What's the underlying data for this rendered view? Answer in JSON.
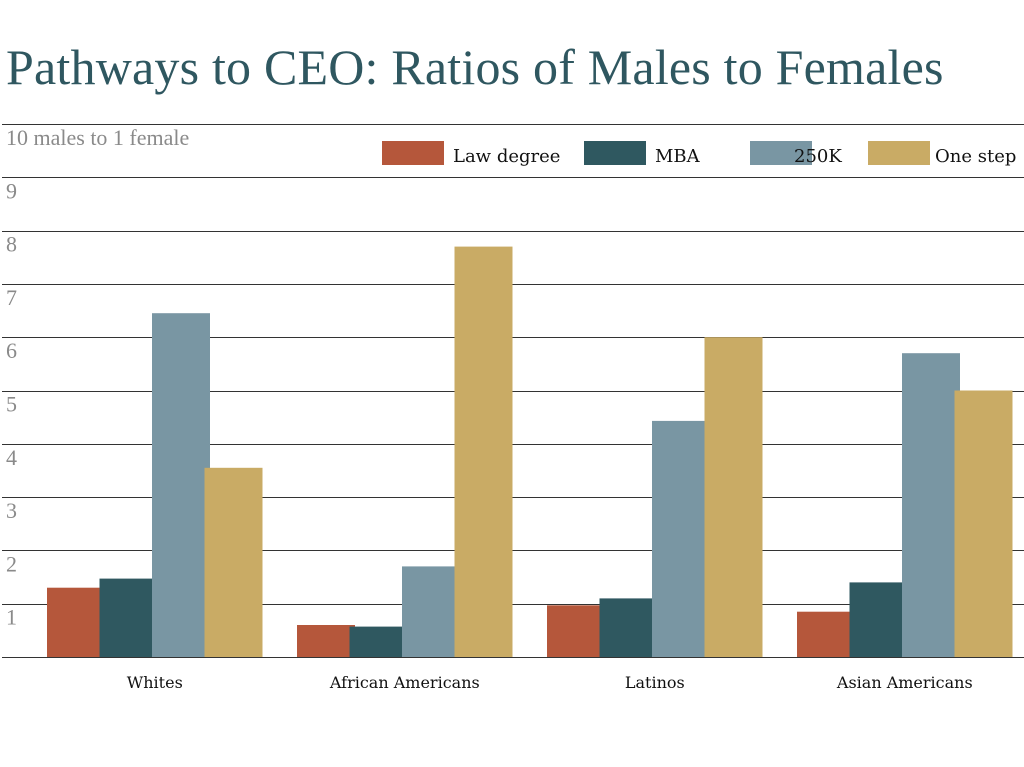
{
  "chart_data": {
    "type": "bar",
    "title": "Pathways to CEO: Ratios of Males to Females",
    "xlabel": "",
    "ylabel": "",
    "ylim": [
      0,
      10
    ],
    "y_ticks": [
      {
        "value": 10,
        "label": "10 males to 1 female"
      },
      {
        "value": 9,
        "label": "9"
      },
      {
        "value": 8,
        "label": "8"
      },
      {
        "value": 7,
        "label": "7"
      },
      {
        "value": 6,
        "label": "6"
      },
      {
        "value": 5,
        "label": "5"
      },
      {
        "value": 4,
        "label": "4"
      },
      {
        "value": 3,
        "label": "3"
      },
      {
        "value": 2,
        "label": "2"
      },
      {
        "value": 1,
        "label": "1"
      }
    ],
    "grid": true,
    "legend_position": "top-right",
    "categories": [
      "Whites",
      "African Americans",
      "Latinos",
      "Asian Americans"
    ],
    "series": [
      {
        "name": "Law degree",
        "color": "#b5573b",
        "values": [
          1.3,
          0.6,
          0.97,
          0.85
        ]
      },
      {
        "name": "MBA",
        "color": "#2f5860",
        "values": [
          1.47,
          0.57,
          1.1,
          1.4
        ]
      },
      {
        "name": "250K",
        "color": "#7996a3",
        "values": [
          6.45,
          1.7,
          4.43,
          5.7
        ]
      },
      {
        "name": "One step",
        "color": "#c9ab65",
        "values": [
          3.55,
          7.7,
          6.0,
          5.0
        ]
      }
    ]
  }
}
